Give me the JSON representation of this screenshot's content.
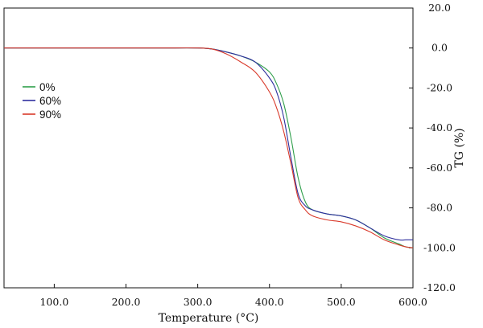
{
  "chart_data": {
    "type": "line",
    "title": "",
    "xlabel": "Temperature (°C)",
    "ylabel": "TG (%)",
    "xlim": [
      30,
      600
    ],
    "ylim": [
      -120,
      20
    ],
    "xticks": [
      100,
      200,
      300,
      400,
      500,
      600
    ],
    "xtick_labels": [
      "100.0",
      "200.0",
      "300.0",
      "400.0",
      "500.0",
      "600.0"
    ],
    "yticks": [
      20,
      0,
      -20,
      -40,
      -60,
      -80,
      -100,
      -120
    ],
    "ytick_labels": [
      "20.0",
      "0.0",
      "-20.0",
      "-40.0",
      "-60.0",
      "-80.0",
      "-100.0",
      "-120.0"
    ],
    "y_axis_side": "right",
    "grid": false,
    "legend_position": "left",
    "series": [
      {
        "name": "0%",
        "color": "#2e9e4a",
        "x": [
          30,
          100,
          200,
          250,
          300,
          320,
          340,
          360,
          380,
          400,
          410,
          420,
          430,
          440,
          450,
          460,
          480,
          500,
          520,
          540,
          560,
          580,
          590,
          600
        ],
        "y": [
          0,
          0,
          0,
          0,
          0,
          -0.5,
          -2,
          -4,
          -7,
          -12,
          -18,
          -28,
          -45,
          -65,
          -77,
          -81,
          -83,
          -84,
          -86,
          -90,
          -95,
          -98,
          -99.5,
          -100
        ]
      },
      {
        "name": "60%",
        "color": "#2e2f9e",
        "x": [
          30,
          100,
          200,
          250,
          300,
          320,
          340,
          360,
          380,
          400,
          410,
          420,
          430,
          440,
          450,
          460,
          480,
          500,
          520,
          540,
          560,
          580,
          590,
          600
        ],
        "y": [
          0,
          0,
          0,
          0,
          0,
          -0.5,
          -2,
          -4,
          -7,
          -15,
          -22,
          -35,
          -55,
          -73,
          -79,
          -81,
          -83,
          -84,
          -86,
          -90,
          -94,
          -96,
          -96,
          -96
        ]
      },
      {
        "name": "90%",
        "color": "#d93a2b",
        "x": [
          30,
          100,
          200,
          250,
          300,
          320,
          340,
          360,
          380,
          400,
          410,
          420,
          430,
          440,
          450,
          460,
          480,
          500,
          520,
          540,
          560,
          580,
          590,
          600
        ],
        "y": [
          0,
          0,
          0,
          0,
          0,
          -0.5,
          -3,
          -7,
          -12,
          -22,
          -30,
          -42,
          -58,
          -75,
          -81,
          -84,
          -86,
          -87,
          -89,
          -92,
          -96,
          -98.5,
          -99.5,
          -100
        ]
      }
    ]
  }
}
